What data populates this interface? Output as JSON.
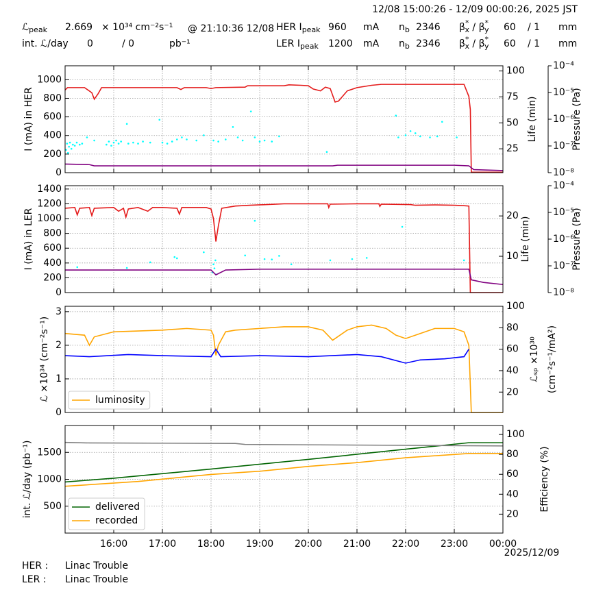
{
  "header": {
    "period": "12/08 15:00:26 - 12/09 00:00:26, 2025 JST",
    "peak": {
      "symbol": "ℒ",
      "sub": "peak",
      "value": "2.669",
      "unit": "× 10³⁴ cm⁻²s⁻¹",
      "time": "@ 21:10:36 12/08"
    },
    "int": {
      "label": "int. ℒ/day",
      "delivered": "0",
      "recorded": "/  0",
      "unit": "pb⁻¹"
    },
    "rings": [
      {
        "name": "HER I",
        "sub": "peak",
        "current": "960",
        "unit": "mA",
        "nb": "n",
        "nb_sub": "b",
        "bunches": "2346",
        "beta": "β",
        "star": "*",
        "bx": "x",
        "sep": " / β",
        "by": "y",
        "beta_x": "60",
        "beta_y": "/ 1",
        "beta_unit": "mm"
      },
      {
        "name": "LER I",
        "sub": "peak",
        "current": "1200",
        "unit": "mA",
        "nb": "n",
        "nb_sub": "b",
        "bunches": "2346",
        "beta": "β",
        "star": "*",
        "bx": "x",
        "sep": " / β",
        "by": "y",
        "beta_x": "60",
        "beta_y": "/ 1",
        "beta_unit": "mm"
      }
    ]
  },
  "status": [
    {
      "ring": "HER :",
      "message": "Linac Trouble"
    },
    {
      "ring": "LER :",
      "message": "Linac Trouble"
    }
  ],
  "chart_data": [
    {
      "type": "line",
      "ylabel": "I (mA) in HER",
      "y2label": "Life (min)",
      "y3label": "Pressure (Pa)",
      "xlim": [
        15,
        24
      ],
      "ylim": [
        0,
        1150
      ],
      "yticks": [
        0,
        200,
        400,
        600,
        800,
        1000
      ],
      "y2lim": [
        2,
        105
      ],
      "y2ticks": [
        25,
        50,
        75,
        100
      ],
      "y3lim": [
        1e-08,
        0.0001
      ],
      "y3scale": "log",
      "y3ticks": [
        {
          "value": 1e-08,
          "label": "10⁻⁸"
        },
        {
          "value": 1e-07,
          "label": "10⁻⁷"
        },
        {
          "value": 1e-06,
          "label": "10⁻⁶"
        },
        {
          "value": 1e-05,
          "label": "10⁻⁵"
        },
        {
          "value": 0.0001,
          "label": "10⁻⁴"
        }
      ],
      "grid": true,
      "series": [
        {
          "kind": "line",
          "axis": "y",
          "color": "#e41a1a",
          "x": [
            15,
            15.05,
            15.4,
            15.55,
            15.6,
            15.68,
            15.75,
            17,
            17.3,
            17.38,
            17.45,
            17.9,
            18,
            18.1,
            18.7,
            18.75,
            19.5,
            19.6,
            19.85,
            20,
            20.1,
            20.25,
            20.35,
            20.45,
            20.55,
            20.62,
            20.8,
            21,
            21.3,
            21.5,
            22.5,
            23.2,
            23.3,
            23.33,
            23.35,
            24
          ],
          "values": [
            890,
            915,
            915,
            860,
            790,
            850,
            915,
            915,
            915,
            895,
            915,
            915,
            905,
            915,
            920,
            935,
            935,
            945,
            940,
            935,
            900,
            880,
            920,
            905,
            760,
            770,
            880,
            915,
            940,
            950,
            950,
            950,
            820,
            680,
            5,
            5
          ]
        },
        {
          "kind": "scatter",
          "axis": "y2",
          "color": "#00ffff",
          "x": [
            15.02,
            15.04,
            15.06,
            15.08,
            15.1,
            15.13,
            15.16,
            15.2,
            15.24,
            15.3,
            15.35,
            15.45,
            15.6,
            15.85,
            15.9,
            15.95,
            16,
            16.05,
            16.1,
            16.15,
            16.27,
            16.3,
            16.4,
            16.5,
            16.6,
            16.75,
            16.94,
            17,
            17.1,
            17.2,
            17.3,
            17.4,
            17.5,
            17.7,
            17.85,
            18.05,
            18.15,
            18.3,
            18.45,
            18.55,
            18.65,
            18.82,
            18.9,
            19,
            19.1,
            19.25,
            19.4,
            20.38,
            21.8,
            21.85,
            22,
            22.1,
            22.2,
            22.3,
            22.5,
            22.65,
            22.75,
            23.05
          ],
          "values": [
            24,
            30,
            21,
            27,
            31,
            25,
            29,
            28,
            31,
            29,
            30,
            36,
            33,
            29,
            32,
            28,
            31,
            33,
            30,
            32,
            49,
            30,
            31,
            30,
            32,
            31,
            53,
            31,
            30,
            32,
            34,
            36,
            34,
            33,
            38,
            33,
            32,
            34,
            46,
            36,
            33,
            61,
            36,
            32,
            33,
            32,
            37,
            22,
            57,
            36,
            38,
            42,
            40,
            37,
            36,
            37,
            51,
            36
          ]
        },
        {
          "kind": "line",
          "axis": "y3",
          "color": "#800080",
          "x": [
            15,
            15.5,
            15.6,
            20.5,
            20.6,
            23,
            23.3,
            23.4,
            24
          ],
          "values": [
            2.1e-08,
            2e-08,
            1.8e-08,
            1.8e-08,
            1.9e-08,
            1.9e-08,
            1.8e-08,
            1.3e-08,
            1.2e-08
          ]
        }
      ]
    },
    {
      "type": "line",
      "ylabel": "I (mA) in LER",
      "y2label": "Life (min)",
      "y3label": "Pressure (Pa)",
      "xlim": [
        15,
        24
      ],
      "ylim": [
        0,
        1445
      ],
      "yticks": [
        0,
        200,
        400,
        600,
        800,
        1000,
        1200,
        1400
      ],
      "y2lim": [
        1,
        27.5
      ],
      "y2ticks": [
        10,
        20
      ],
      "y3lim": [
        1e-08,
        0.0001
      ],
      "y3scale": "log",
      "y3ticks": [
        {
          "value": 1e-08,
          "label": "10⁻⁸"
        },
        {
          "value": 1e-07,
          "label": "10⁻⁷"
        },
        {
          "value": 1e-06,
          "label": "10⁻⁶"
        },
        {
          "value": 1e-05,
          "label": "10⁻⁵"
        },
        {
          "value": 0.0001,
          "label": "10⁻⁴"
        }
      ],
      "grid": true,
      "series": [
        {
          "kind": "line",
          "axis": "y",
          "color": "#e41a1a",
          "x": [
            15,
            15.2,
            15.25,
            15.3,
            15.5,
            15.55,
            15.6,
            16,
            16.1,
            16.2,
            16.25,
            16.3,
            16.5,
            16.7,
            16.8,
            17,
            17.3,
            17.35,
            17.4,
            17.9,
            18,
            18.05,
            18.1,
            18.15,
            18.22,
            18.5,
            18.8,
            19.5,
            20.4,
            20.42,
            20.45,
            21,
            21.45,
            21.47,
            21.5,
            22.1,
            22.2,
            22.6,
            23,
            23.2,
            23.3,
            23.33,
            24
          ],
          "values": [
            1140,
            1150,
            1050,
            1140,
            1150,
            1040,
            1140,
            1150,
            1100,
            1140,
            1020,
            1130,
            1150,
            1100,
            1150,
            1150,
            1140,
            1060,
            1150,
            1150,
            1130,
            1000,
            690,
            900,
            1140,
            1170,
            1180,
            1200,
            1200,
            1150,
            1195,
            1200,
            1200,
            1165,
            1195,
            1190,
            1180,
            1185,
            1180,
            1175,
            1170,
            0,
            0
          ]
        },
        {
          "kind": "scatter",
          "axis": "y2",
          "color": "#00ffff",
          "x": [
            15.25,
            16.27,
            16.75,
            17.25,
            17.3,
            17.85,
            18.03,
            18.05,
            18.07,
            18.09,
            18.1,
            18.7,
            18.9,
            19.1,
            19.25,
            19.4,
            19.65,
            20.45,
            20.9,
            21.2,
            21.93,
            23.2
          ],
          "values": [
            7.3,
            7.1,
            8.5,
            9.8,
            9.5,
            11,
            6,
            8,
            7,
            9,
            5.5,
            10.2,
            18.8,
            9.3,
            9.2,
            10.1,
            8,
            9,
            9.3,
            9.6,
            17.3,
            9
          ]
        },
        {
          "kind": "line",
          "axis": "y3",
          "color": "#800080",
          "x": [
            15,
            18,
            18.1,
            18.3,
            19,
            23.3,
            23.35,
            23.6,
            24
          ],
          "values": [
            7e-08,
            7e-08,
            4.6e-08,
            7e-08,
            7.5e-08,
            7.5e-08,
            3e-08,
            2.4e-08,
            2e-08
          ]
        }
      ]
    },
    {
      "type": "line",
      "ylabel": "ℒ ×10³⁴ (cm⁻²s⁻¹)",
      "y2label": [
        "ℒₛₚ ×10³⁰",
        "(cm⁻²s⁻¹/mA²)"
      ],
      "xlim": [
        15,
        24
      ],
      "ylim": [
        0,
        3.16
      ],
      "yticks": [
        0,
        1,
        2,
        3
      ],
      "y2lim": [
        1,
        100
      ],
      "y2ticks": [
        20,
        40,
        60,
        80,
        100
      ],
      "grid": true,
      "legend": "lower left",
      "series": [
        {
          "kind": "line",
          "axis": "y",
          "name": "luminosity",
          "color": "#ffa500",
          "x": [
            15,
            15.4,
            15.5,
            15.6,
            16,
            17,
            17.5,
            18,
            18.05,
            18.1,
            18.15,
            18.3,
            18.5,
            19,
            19.5,
            20,
            20.3,
            20.5,
            20.8,
            21,
            21.3,
            21.6,
            21.8,
            22,
            22.3,
            22.6,
            23,
            23.2,
            23.3,
            23.35,
            24
          ],
          "values": [
            2.35,
            2.3,
            2,
            2.25,
            2.4,
            2.45,
            2.5,
            2.45,
            2.3,
            1.7,
            2,
            2.4,
            2.45,
            2.5,
            2.55,
            2.55,
            2.45,
            2.15,
            2.45,
            2.55,
            2.6,
            2.5,
            2.3,
            2.2,
            2.35,
            2.5,
            2.5,
            2.4,
            2,
            0,
            0
          ]
        },
        {
          "kind": "line",
          "axis": "y2",
          "color": "#0000ff",
          "x": [
            15,
            15.5,
            16.3,
            17,
            18,
            18.1,
            18.2,
            19,
            20,
            21,
            21.5,
            22,
            22.3,
            22.8,
            23.2,
            23.3
          ],
          "values": [
            54,
            53,
            55,
            54,
            53,
            60,
            53,
            54,
            53,
            55,
            53,
            47,
            50,
            51,
            53,
            60
          ]
        }
      ]
    },
    {
      "type": "line",
      "ylabel": "int. ℒ/day (pb⁻¹)",
      "y2label": "Efficiency (%)",
      "xlabel": "2025/12/09",
      "xlim": [
        15,
        24
      ],
      "xticks": [
        {
          "value": 16,
          "label": "16:00"
        },
        {
          "value": 17,
          "label": "17:00"
        },
        {
          "value": 18,
          "label": "18:00"
        },
        {
          "value": 19,
          "label": "19:00"
        },
        {
          "value": 20,
          "label": "20:00"
        },
        {
          "value": 21,
          "label": "21:00"
        },
        {
          "value": 22,
          "label": "22:00"
        },
        {
          "value": 23,
          "label": "23:00"
        },
        {
          "value": 24,
          "label": "00:00"
        }
      ],
      "ylim": [
        0,
        2000
      ],
      "yticks": [
        500,
        1000,
        1500
      ],
      "y2lim": [
        1,
        109
      ],
      "y2ticks": [
        20,
        40,
        60,
        80,
        100
      ],
      "grid": true,
      "legend": "lower left",
      "series": [
        {
          "kind": "line",
          "axis": "y",
          "name": "delivered",
          "color": "#006400",
          "x": [
            15,
            16,
            18,
            20,
            22,
            23.3,
            24
          ],
          "values": [
            950,
            1020,
            1190,
            1370,
            1560,
            1680,
            1680
          ]
        },
        {
          "kind": "line",
          "axis": "y",
          "name": "recorded",
          "color": "#ffa500",
          "x": [
            15,
            16.5,
            18,
            19,
            20,
            21,
            22,
            23.3,
            24
          ],
          "values": [
            870,
            960,
            1090,
            1150,
            1240,
            1310,
            1400,
            1480,
            1480
          ]
        },
        {
          "kind": "line",
          "axis": "y2",
          "color": "#808080",
          "x": [
            15,
            15.5,
            18.5,
            18.7,
            24
          ],
          "values": [
            92,
            91.5,
            91,
            90,
            88.5
          ]
        }
      ]
    }
  ]
}
